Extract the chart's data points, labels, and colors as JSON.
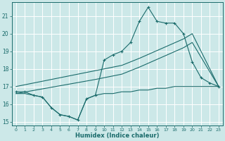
{
  "xlabel": "Humidex (Indice chaleur)",
  "background_color": "#cce8e8",
  "grid_color": "#b0d4d4",
  "line_color": "#1a6b6b",
  "ylim": [
    14.8,
    21.8
  ],
  "xlim": [
    -0.5,
    23.5
  ],
  "yticks": [
    15,
    16,
    17,
    18,
    19,
    20,
    21
  ],
  "xticks": [
    0,
    1,
    2,
    3,
    4,
    5,
    6,
    7,
    8,
    9,
    10,
    11,
    12,
    13,
    14,
    15,
    16,
    17,
    18,
    19,
    20,
    21,
    22,
    23
  ],
  "top_x": [
    0,
    1,
    2,
    3,
    4,
    5,
    6,
    7,
    8,
    9,
    10,
    11,
    12,
    13,
    14,
    15,
    16,
    17,
    18,
    19,
    20,
    21,
    22,
    23
  ],
  "top_y": [
    16.7,
    16.7,
    16.5,
    16.4,
    15.8,
    15.4,
    15.3,
    15.1,
    16.3,
    16.5,
    18.5,
    18.8,
    19.0,
    19.5,
    20.7,
    21.5,
    20.7,
    20.6,
    20.6,
    20.0,
    18.4,
    17.5,
    17.2,
    17.0
  ],
  "diag_upper_x": [
    0,
    9,
    12,
    13,
    14,
    19,
    20,
    23
  ],
  "diag_upper_y": [
    17.0,
    17.9,
    18.2,
    18.4,
    18.6,
    19.7,
    20.0,
    17.0
  ],
  "diag_lower_x": [
    0,
    9,
    12,
    13,
    14,
    19,
    20,
    23
  ],
  "diag_lower_y": [
    16.6,
    17.4,
    17.7,
    17.9,
    18.1,
    19.2,
    19.5,
    17.0
  ],
  "bot_x": [
    0,
    1,
    2,
    3,
    4,
    5,
    6,
    7,
    8,
    9,
    10,
    11,
    12,
    13,
    14,
    15,
    16,
    17,
    18,
    19,
    20,
    21,
    22,
    23
  ],
  "bot_y": [
    16.6,
    16.6,
    16.5,
    16.4,
    15.8,
    15.4,
    15.3,
    15.1,
    16.3,
    16.5,
    16.6,
    16.6,
    16.7,
    16.7,
    16.8,
    16.8,
    16.9,
    16.9,
    17.0,
    17.0,
    17.0,
    17.0,
    17.0,
    17.0
  ]
}
